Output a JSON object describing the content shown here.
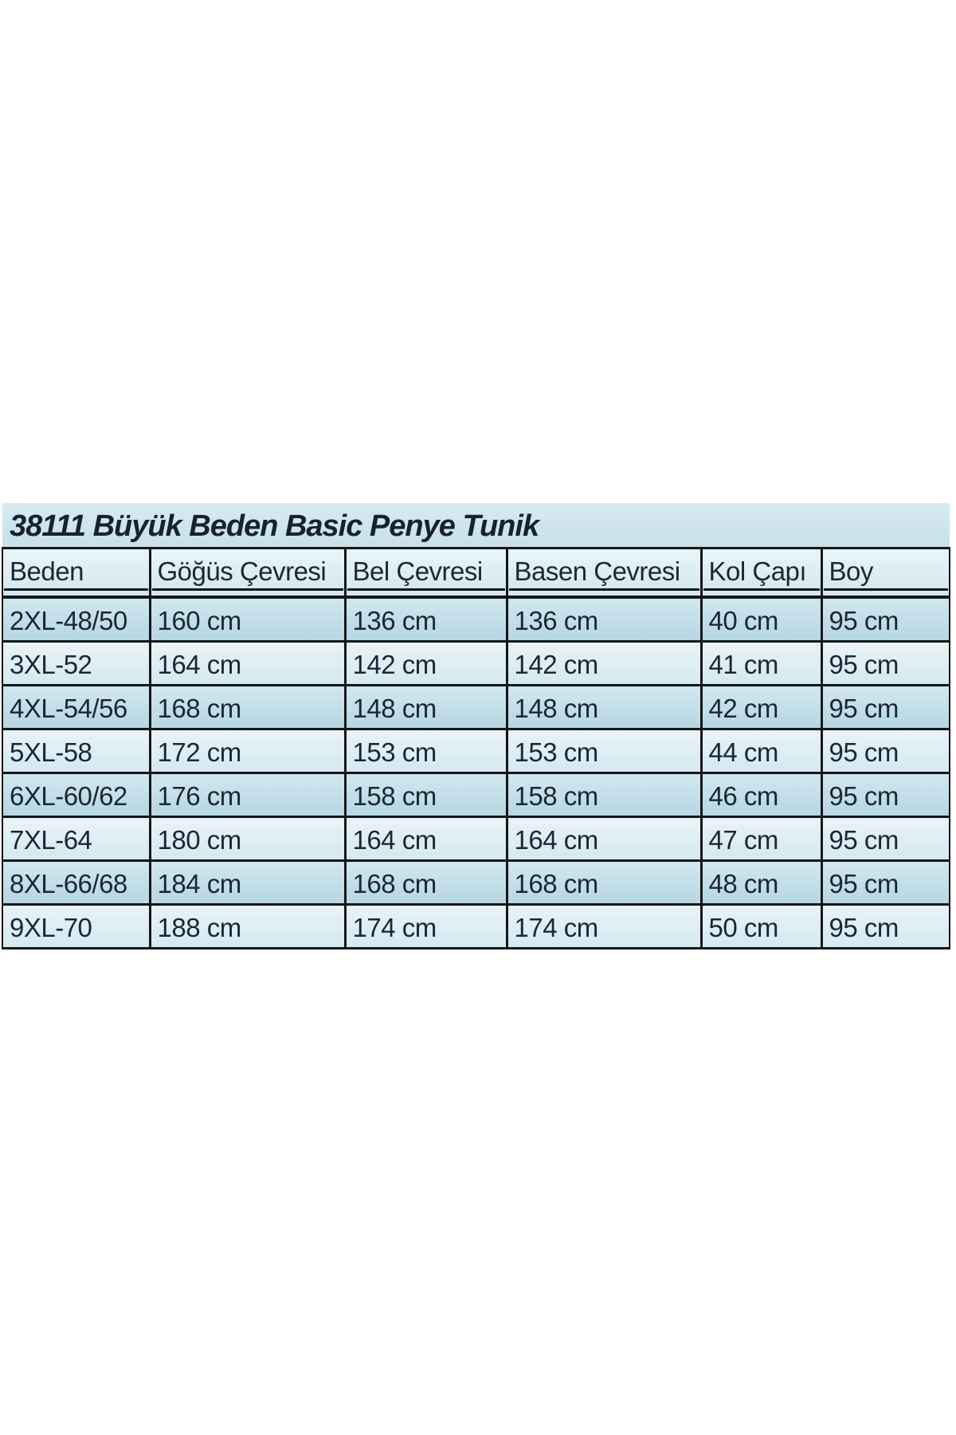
{
  "size_table": {
    "title": "38111 Büyük Beden Basic Penye Tunik",
    "columns": [
      "Beden",
      "Göğüs Çevresi",
      "Bel Çevresi",
      "Basen Çevresi",
      "Kol Çapı",
      "Boy"
    ],
    "rows": [
      [
        "2XL-48/50",
        "160 cm",
        "136 cm",
        "136 cm",
        "40 cm",
        "95 cm"
      ],
      [
        "3XL-52",
        "164 cm",
        "142 cm",
        "142 cm",
        "41 cm",
        "95 cm"
      ],
      [
        "4XL-54/56",
        "168 cm",
        "148 cm",
        "148 cm",
        "42 cm",
        "95 cm"
      ],
      [
        "5XL-58",
        "172 cm",
        "153 cm",
        "153 cm",
        "44 cm",
        "95 cm"
      ],
      [
        "6XL-60/62",
        "176 cm",
        "158 cm",
        "158 cm",
        "46 cm",
        "95 cm"
      ],
      [
        "7XL-64",
        "180 cm",
        "164 cm",
        "164 cm",
        "47 cm",
        "95 cm"
      ],
      [
        "8XL-66/68",
        "184 cm",
        "168 cm",
        "168 cm",
        "48 cm",
        "95 cm"
      ],
      [
        "9XL-70",
        "188 cm",
        "174 cm",
        "174 cm",
        "50 cm",
        "95 cm"
      ]
    ],
    "colors": {
      "page_background": "#ffffff",
      "title_row_background": "#cfe5ee",
      "header_row_background": "#dcecf3",
      "row_dark_background": "#bfdce8",
      "row_light_background": "#dcedf4",
      "border": "#161616",
      "text": "#1c2734"
    }
  }
}
